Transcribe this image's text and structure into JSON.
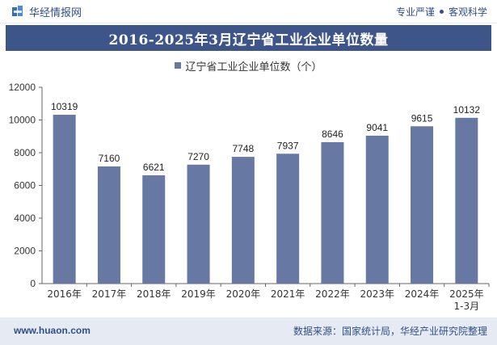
{
  "header": {
    "brand_name": "华经情报网",
    "tagline_left": "专业严谨",
    "tagline_right": "客观科学"
  },
  "chart_data": {
    "type": "bar",
    "title": "2016-2025年3月辽宁省工业企业单位数量",
    "legend": [
      "辽宁省工业企业单位数（个）"
    ],
    "categories": [
      "2016年",
      "2017年",
      "2018年",
      "2019年",
      "2020年",
      "2021年",
      "2022年",
      "2023年",
      "2024年",
      "2025年1-3月"
    ],
    "category_lines": [
      [
        "2016年"
      ],
      [
        "2017年"
      ],
      [
        "2018年"
      ],
      [
        "2019年"
      ],
      [
        "2020年"
      ],
      [
        "2021年"
      ],
      [
        "2022年"
      ],
      [
        "2023年"
      ],
      [
        "2024年"
      ],
      [
        "2025年",
        "1-3月"
      ]
    ],
    "series": [
      {
        "name": "辽宁省工业企业单位数（个）",
        "values": [
          10319,
          7160,
          6621,
          7270,
          7748,
          7937,
          8646,
          9041,
          9615,
          10132
        ]
      }
    ],
    "yticks": [
      0,
      2000,
      4000,
      6000,
      8000,
      10000,
      12000
    ],
    "ylim": [
      0,
      12000
    ],
    "xlabel": "",
    "ylabel": "",
    "bar_color": "#6778a2",
    "grid": false
  },
  "footer": {
    "website": "www.huaon.com",
    "source": "数据来源：国家统计局，华经产业研究院整理"
  }
}
